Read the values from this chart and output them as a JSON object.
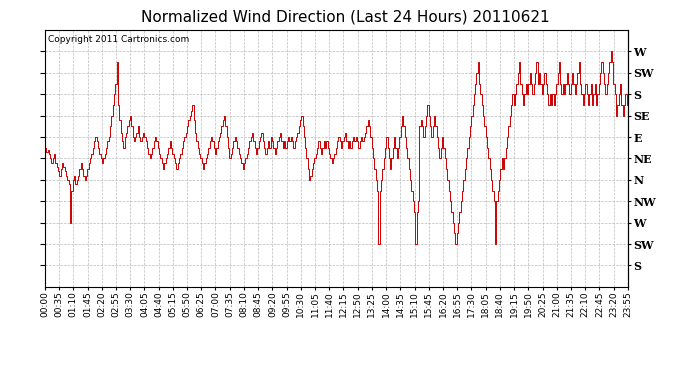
{
  "title": "Normalized Wind Direction (Last 24 Hours) 20110621",
  "copyright_text": "Copyright 2011 Cartronics.com",
  "line_color": "#cc0000",
  "background_color": "#ffffff",
  "plot_background": "#ffffff",
  "grid_color": "#bbbbbb",
  "ytick_labels": [
    "W",
    "SW",
    "S",
    "SE",
    "E",
    "NE",
    "N",
    "NW",
    "W",
    "SW",
    "S"
  ],
  "ytick_values": [
    11,
    10,
    9,
    8,
    7,
    6,
    5,
    4,
    3,
    2,
    1
  ],
  "ylim": [
    0.0,
    12.0
  ],
  "title_fontsize": 11,
  "label_fontsize": 8,
  "tick_fontsize": 6.5,
  "wind_data": [
    6.5,
    6.3,
    6.4,
    6.2,
    6.0,
    5.8,
    6.0,
    6.2,
    5.8,
    5.6,
    5.4,
    5.2,
    5.5,
    5.8,
    5.6,
    5.4,
    5.2,
    5.0,
    4.8,
    3.0,
    4.5,
    5.0,
    5.2,
    4.8,
    5.0,
    5.2,
    5.5,
    5.8,
    5.5,
    5.2,
    5.0,
    5.2,
    5.5,
    5.8,
    6.0,
    6.2,
    6.5,
    6.8,
    7.0,
    6.8,
    6.5,
    6.2,
    6.0,
    5.8,
    6.0,
    6.2,
    6.5,
    6.8,
    7.0,
    7.5,
    8.0,
    8.5,
    9.0,
    9.5,
    10.5,
    8.5,
    7.8,
    7.2,
    6.8,
    6.5,
    7.0,
    7.2,
    7.5,
    7.8,
    8.0,
    7.5,
    7.0,
    6.8,
    7.0,
    7.2,
    7.5,
    7.0,
    6.8,
    7.0,
    7.2,
    7.0,
    6.8,
    6.5,
    6.2,
    6.0,
    6.2,
    6.5,
    6.8,
    7.0,
    6.8,
    6.5,
    6.2,
    6.0,
    5.8,
    5.5,
    5.8,
    6.0,
    6.2,
    6.5,
    6.8,
    6.5,
    6.2,
    6.0,
    5.8,
    5.5,
    5.8,
    6.0,
    6.2,
    6.5,
    6.8,
    7.0,
    7.2,
    7.5,
    7.8,
    8.0,
    8.2,
    8.5,
    7.8,
    7.2,
    6.8,
    6.5,
    6.2,
    6.0,
    5.8,
    5.5,
    5.8,
    6.0,
    6.2,
    6.5,
    6.8,
    7.0,
    6.8,
    6.5,
    6.2,
    6.5,
    6.8,
    7.0,
    7.2,
    7.5,
    7.8,
    8.0,
    7.5,
    7.0,
    6.5,
    6.0,
    6.2,
    6.5,
    6.8,
    7.0,
    6.8,
    6.5,
    6.2,
    6.0,
    5.8,
    5.5,
    5.8,
    6.0,
    6.2,
    6.5,
    6.8,
    7.0,
    7.2,
    6.8,
    6.5,
    6.2,
    6.5,
    6.8,
    7.0,
    7.2,
    6.8,
    6.5,
    6.2,
    6.5,
    6.8,
    6.5,
    7.0,
    6.8,
    6.5,
    6.2,
    6.5,
    6.8,
    7.0,
    7.2,
    6.8,
    6.5,
    6.8,
    6.5,
    6.8,
    7.0,
    6.8,
    7.0,
    6.8,
    6.5,
    6.8,
    7.0,
    7.2,
    7.5,
    7.8,
    8.0,
    7.5,
    7.0,
    6.5,
    6.0,
    5.5,
    5.0,
    5.2,
    5.5,
    5.8,
    6.0,
    6.2,
    6.5,
    6.8,
    6.5,
    6.2,
    6.5,
    6.8,
    6.5,
    6.8,
    6.5,
    6.2,
    6.0,
    5.8,
    6.0,
    6.2,
    6.5,
    6.8,
    7.0,
    6.8,
    6.5,
    6.8,
    7.0,
    7.2,
    6.8,
    6.5,
    6.8,
    6.5,
    6.8,
    7.0,
    6.8,
    7.0,
    6.8,
    6.5,
    6.8,
    7.0,
    6.8,
    7.0,
    7.2,
    7.5,
    7.8,
    7.5,
    7.0,
    6.5,
    6.0,
    5.5,
    5.0,
    4.5,
    2.0,
    4.5,
    5.0,
    5.5,
    6.0,
    6.5,
    7.0,
    6.5,
    6.0,
    5.5,
    6.0,
    6.5,
    7.0,
    6.5,
    6.0,
    6.5,
    7.0,
    7.5,
    8.0,
    7.5,
    7.0,
    6.5,
    6.0,
    5.5,
    5.0,
    4.5,
    4.0,
    3.5,
    2.0,
    3.5,
    4.0,
    7.5,
    7.8,
    7.5,
    7.0,
    7.5,
    8.0,
    8.5,
    8.0,
    7.5,
    7.0,
    7.5,
    8.0,
    7.5,
    7.0,
    6.5,
    6.0,
    6.5,
    7.0,
    6.5,
    6.0,
    5.5,
    5.0,
    4.5,
    4.0,
    3.5,
    3.0,
    2.5,
    2.0,
    2.5,
    3.0,
    3.5,
    4.0,
    4.5,
    5.0,
    5.5,
    6.0,
    6.5,
    7.0,
    7.5,
    8.0,
    8.5,
    9.0,
    9.5,
    10.0,
    10.5,
    9.5,
    9.0,
    8.5,
    8.0,
    7.5,
    7.0,
    6.5,
    6.0,
    5.5,
    5.0,
    4.5,
    4.0,
    2.0,
    4.0,
    4.5,
    5.0,
    5.5,
    6.0,
    5.5,
    6.0,
    6.5,
    7.0,
    7.5,
    8.0,
    8.5,
    9.0,
    8.5,
    9.0,
    9.5,
    10.0,
    10.5,
    9.5,
    9.0,
    8.5,
    9.0,
    9.5,
    9.0,
    9.5,
    10.0,
    9.5,
    9.0,
    9.5,
    10.0,
    10.5,
    9.5,
    10.0,
    9.5,
    9.0,
    9.5,
    10.0,
    9.5,
    9.0,
    8.5,
    9.0,
    8.5,
    9.0,
    8.5,
    9.0,
    9.5,
    10.0,
    10.5,
    9.5,
    9.0,
    9.5,
    9.0,
    9.5,
    10.0,
    9.5,
    9.0,
    9.5,
    10.0,
    9.5,
    9.0,
    9.5,
    10.0,
    10.5,
    9.5,
    9.0,
    8.5,
    9.0,
    9.5,
    9.0,
    8.5,
    9.0,
    9.5,
    8.5,
    9.0,
    9.5,
    8.5,
    9.0,
    9.5,
    10.0,
    10.5,
    10.0,
    9.5,
    9.0,
    9.5,
    10.0,
    10.5,
    11.0,
    10.5,
    9.5,
    9.0,
    8.0,
    8.5,
    9.0,
    9.5,
    8.5,
    8.0,
    8.5,
    9.0,
    8.5,
    8.0
  ],
  "xtick_labels": [
    "00:00",
    "00:35",
    "01:10",
    "01:45",
    "02:20",
    "02:55",
    "03:30",
    "04:05",
    "04:40",
    "05:15",
    "05:50",
    "06:25",
    "07:00",
    "07:35",
    "08:10",
    "08:45",
    "09:20",
    "09:55",
    "10:30",
    "11:05",
    "11:40",
    "12:15",
    "12:50",
    "13:25",
    "14:00",
    "14:35",
    "15:10",
    "15:45",
    "16:20",
    "16:55",
    "17:30",
    "18:05",
    "18:40",
    "19:15",
    "19:50",
    "20:25",
    "21:00",
    "21:35",
    "22:10",
    "22:45",
    "23:20",
    "23:55"
  ]
}
